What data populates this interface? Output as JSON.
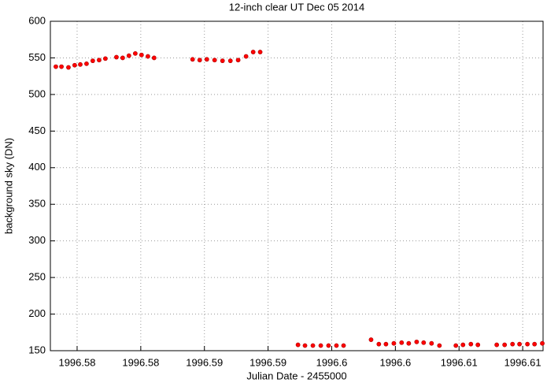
{
  "chart_data": {
    "type": "scatter",
    "title": "12-inch clear UT Dec 05 2014",
    "xlabel": "Julian Date - 2455000",
    "ylabel": "background sky (DN)",
    "color": "#ff0000",
    "grid": true,
    "xlim": [
      1996.5729,
      1996.6116
    ],
    "ylim": [
      150,
      600
    ],
    "xticks": [
      {
        "value": 1996.575,
        "label": "1996.58"
      },
      {
        "value": 1996.58,
        "label": "1996.58"
      },
      {
        "value": 1996.585,
        "label": "1996.59"
      },
      {
        "value": 1996.59,
        "label": "1996.59"
      },
      {
        "value": 1996.595,
        "label": "1996.6"
      },
      {
        "value": 1996.6,
        "label": "1996.6"
      },
      {
        "value": 1996.605,
        "label": "1996.61"
      },
      {
        "value": 1996.61,
        "label": "1996.61"
      }
    ],
    "yticks": [
      150,
      200,
      250,
      300,
      350,
      400,
      450,
      500,
      550,
      600
    ],
    "x": [
      1996.57333,
      1996.57377,
      1996.57432,
      1996.57481,
      1996.57525,
      1996.57574,
      1996.57623,
      1996.57673,
      1996.57722,
      1996.57809,
      1996.57858,
      1996.57907,
      1996.57957,
      1996.58006,
      1996.58056,
      1996.58105,
      1996.58407,
      1996.58463,
      1996.58519,
      1996.5858,
      1996.58642,
      1996.58704,
      1996.58765,
      1996.58827,
      1996.58883,
      1996.58938,
      1996.59235,
      1996.5929,
      1996.59352,
      1996.59414,
      1996.59475,
      1996.59537,
      1996.59593,
      1996.59809,
      1996.5987,
      1996.59926,
      1996.59988,
      1996.60049,
      1996.60105,
      1996.60167,
      1996.60222,
      1996.60284,
      1996.60346,
      1996.60475,
      1996.60531,
      1996.60593,
      1996.60648,
      1996.60796,
      1996.60858,
      1996.6092,
      1996.60975,
      1996.61037,
      1996.61093,
      1996.61154
    ],
    "values": [
      538,
      538,
      537,
      540,
      541,
      542,
      546,
      547,
      549,
      551,
      550,
      553,
      556,
      554,
      552,
      550,
      548,
      547,
      548,
      547,
      546,
      546,
      547,
      552,
      558,
      558,
      158,
      157,
      157,
      157,
      157,
      157,
      157,
      165,
      159,
      159,
      160,
      161,
      160,
      162,
      161,
      160,
      157,
      157,
      158,
      159,
      158,
      158,
      158,
      159,
      159,
      159,
      159,
      160
    ]
  }
}
